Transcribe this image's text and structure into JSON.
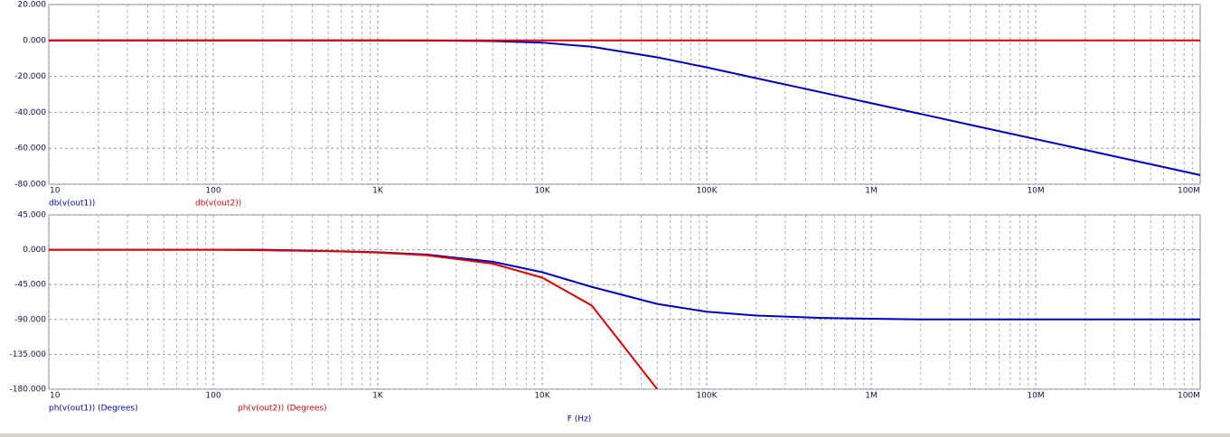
{
  "chart_data": [
    {
      "type": "line",
      "log_x": true,
      "grid": true,
      "x": [
        10,
        20,
        50,
        100,
        200,
        500,
        1000,
        2000,
        5000,
        10000,
        20000,
        50000,
        100000,
        200000,
        500000,
        1000000,
        2000000,
        5000000,
        10000000,
        20000000,
        50000000,
        100000000
      ],
      "xlim": [
        10,
        100000000
      ],
      "xticks": [
        10,
        100,
        {
          "value": 1000,
          "label": "1K"
        },
        {
          "value": 10000,
          "label": "10K"
        },
        {
          "value": 100000,
          "label": "100K"
        },
        {
          "value": 1000000,
          "label": "1M"
        },
        {
          "value": 10000000,
          "label": "10M"
        },
        {
          "value": 100000000,
          "label": "100M"
        }
      ],
      "ylim": [
        -80,
        20
      ],
      "yticks": [
        {
          "value": -80,
          "label": "-80.000"
        },
        {
          "value": -60,
          "label": "-60.000"
        },
        {
          "value": -40,
          "label": "-40.000"
        },
        {
          "value": -20,
          "label": "-20.000"
        },
        {
          "value": 0,
          "label": "0.000"
        },
        {
          "value": 20,
          "label": "20.000"
        }
      ],
      "series": [
        {
          "name": "db(v(out1))",
          "color": "#0000c0",
          "values": [
            0,
            0,
            0,
            0,
            0,
            0,
            0,
            -0.05,
            -0.32,
            -1.2,
            -3.5,
            -9.4,
            -15,
            -21,
            -28.9,
            -34.9,
            -40.9,
            -48.9,
            -54.9,
            -60.9,
            -68.9,
            -74.9
          ]
        },
        {
          "name": "db(v(out2))",
          "color": "#e00000",
          "values": [
            0,
            0,
            0,
            0,
            0,
            0,
            0,
            0,
            0,
            0,
            0,
            0,
            0,
            0,
            0,
            0,
            0,
            0,
            0,
            0,
            0,
            0
          ]
        }
      ]
    },
    {
      "type": "line",
      "log_x": true,
      "grid": true,
      "xlabel": "F (Hz)",
      "x": [
        10,
        20,
        50,
        100,
        200,
        500,
        1000,
        2000,
        5000,
        10000,
        20000,
        50000,
        100000,
        200000,
        500000,
        1000000,
        2000000,
        5000000,
        10000000,
        20000000,
        50000000,
        100000000
      ],
      "xlim": [
        10,
        100000000
      ],
      "xticks": [
        10,
        100,
        {
          "value": 1000,
          "label": "1K"
        },
        {
          "value": 10000,
          "label": "10K"
        },
        {
          "value": 100000,
          "label": "100K"
        },
        {
          "value": 1000000,
          "label": "1M"
        },
        {
          "value": 10000000,
          "label": "10M"
        },
        {
          "value": 100000000,
          "label": "100M"
        }
      ],
      "ylim": [
        -180,
        45
      ],
      "yticks": [
        {
          "value": -180,
          "label": "-180.000"
        },
        {
          "value": -135,
          "label": "-135.000"
        },
        {
          "value": -90,
          "label": "-90.000"
        },
        {
          "value": -45,
          "label": "-45.000"
        },
        {
          "value": 0,
          "label": "0.000"
        },
        {
          "value": 45,
          "label": "45.000"
        }
      ],
      "series": [
        {
          "name": "ph(v(out1)) (Degrees)",
          "color": "#0000c0",
          "values": [
            0,
            0,
            0,
            0,
            0,
            -1.6,
            -3.2,
            -6.3,
            -15.5,
            -29,
            -48,
            -70,
            -80,
            -85,
            -88,
            -89,
            -90,
            -90,
            -90,
            -90,
            -90,
            -90
          ]
        },
        {
          "name": "ph(v(out2)) (Degrees)",
          "color": "#e00000",
          "values": [
            0,
            0,
            0,
            0,
            -0.7,
            -1.8,
            -3.6,
            -7.2,
            -18,
            -36,
            -72,
            -180,
            null,
            null,
            null,
            null,
            null,
            null,
            null,
            null,
            null,
            null
          ]
        }
      ]
    }
  ]
}
